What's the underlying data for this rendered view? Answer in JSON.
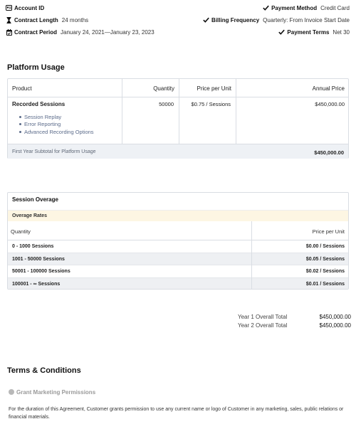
{
  "header": {
    "account_id_label": "Account ID",
    "contract_length_label": "Contract Length",
    "contract_length_value": "24 months",
    "contract_period_label": "Contract Period",
    "contract_period_value": "January 24, 2021—January 23, 2023",
    "payment_method_label": "Payment Method",
    "payment_method_value": "Credit Card",
    "billing_frequency_label": "Billing Frequency",
    "billing_frequency_value": "Quarterly: From Invoice Start Date",
    "payment_terms_label": "Payment Terms",
    "payment_terms_value": "Net 30"
  },
  "platform_usage": {
    "title": "Platform Usage",
    "columns": [
      "Product",
      "Quantity",
      "Price per Unit",
      "Annual Price"
    ],
    "product_name": "Recorded Sessions",
    "quantity": "50000",
    "price_per_unit": "$0.75 / Sessions",
    "annual_price": "$450,000.00",
    "features": [
      "Session Replay",
      "Error Reporting",
      "Advanced Recording Options"
    ],
    "subtotal_label": "First Year Subtotal for Platform Usage",
    "subtotal_value": "$450,000.00"
  },
  "session_overage": {
    "title": "Session Overage",
    "rates_label": "Overage Rates",
    "columns": [
      "Quantity",
      "Price per Unit"
    ],
    "rows": [
      {
        "quantity": "0 - 1000 Sessions",
        "price": "$0.00 / Sessions"
      },
      {
        "quantity": "1001 - 50000 Sessions",
        "price": "$0.05 / Sessions"
      },
      {
        "quantity": "50001 - 100000 Sessions",
        "price": "$0.02 / Sessions"
      },
      {
        "quantity": "100001 - ∞ Sessions",
        "price": "$0.01 / Sessions"
      }
    ]
  },
  "totals": {
    "year1_label": "Year 1 Overall Total",
    "year1_value": "$450,000.00",
    "year2_label": "Year 2 Overall Total",
    "year2_value": "$450,000.00"
  },
  "terms": {
    "title": "Terms & Conditions",
    "permission_label": "Grant Marketing Permissions",
    "paragraph": "For the duration of this Agreement, Customer grants permission to use any current name or logo of Customer in any marketing, sales, public relations or financial materials."
  },
  "colors": {
    "border": "#d9dde3",
    "subtotal_bg": "#eef1f5",
    "rates_bg": "#fdf6e3",
    "feature_text": "#5b6b8a"
  },
  "icons": [
    "id-card-icon",
    "hourglass-icon",
    "calendar-icon",
    "check-icon"
  ]
}
